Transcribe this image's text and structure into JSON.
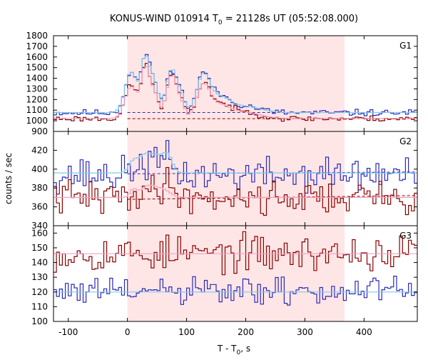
{
  "chart_data": {
    "type": "line",
    "title": "KONUS-WIND 010914 T",
    "title_sub": "0",
    "title_rest": " = 21128s UT (05:52:08.000)",
    "xlabel": "T - T",
    "xlabel_sub": "0",
    "xlabel_rest": ", s",
    "ylabel": "counts / sec",
    "xlim": [
      -125,
      490
    ],
    "x_ticks": [
      -100,
      0,
      100,
      200,
      300,
      400
    ],
    "x_tick_labels": [
      "-100",
      "0",
      "100",
      "200",
      "300",
      "400"
    ],
    "shaded_interval": [
      0,
      367
    ],
    "colors": {
      "shade": "#ffe6e6",
      "blue_hist": "#2a2ab8",
      "red_hist": "#8b0000",
      "fit_blue": "#7fc8f0",
      "fit_red": "#f0a0c0",
      "bg_blue": "#2a2ab8",
      "bg_red": "#8b0000"
    },
    "panels": [
      {
        "label": "G1",
        "ylim": [
          900,
          1800
        ],
        "y_ticks": [
          900,
          1000,
          1100,
          1200,
          1300,
          1400,
          1500,
          1600,
          1700,
          1800
        ],
        "y_tick_labels": [
          "900",
          "1000",
          "1100",
          "1200",
          "1300",
          "1400",
          "1500",
          "1600",
          "1700",
          "1800"
        ],
        "series": [
          {
            "style": "blue_hist",
            "base": 1075,
            "noise": 15,
            "seed": 11,
            "bumps": [
              [
                6,
                10,
                390
              ],
              [
                30,
                7,
                500
              ],
              [
                45,
                7,
                290
              ],
              [
                75,
                9,
                420
              ],
              [
                92,
                6,
                130
              ],
              [
                128,
                11,
                330
              ],
              [
                155,
                18,
                150
              ],
              [
                200,
                25,
                60
              ]
            ]
          },
          {
            "style": "red_hist",
            "base": 1020,
            "noise": 13,
            "seed": 23,
            "bumps": [
              [
                6,
                10,
                310
              ],
              [
                30,
                7,
                470
              ],
              [
                45,
                7,
                240
              ],
              [
                75,
                9,
                420
              ],
              [
                92,
                6,
                110
              ],
              [
                128,
                11,
                300
              ],
              [
                155,
                18,
                130
              ],
              [
                200,
                25,
                60
              ]
            ]
          },
          {
            "style": "fit_blue",
            "base": 1078,
            "noise": 0,
            "seed": 0,
            "bumps": [
              [
                6,
                10,
                380
              ],
              [
                30,
                7,
                490
              ],
              [
                45,
                7,
                280
              ],
              [
                75,
                9,
                410
              ],
              [
                92,
                6,
                120
              ],
              [
                128,
                11,
                320
              ],
              [
                155,
                18,
                140
              ],
              [
                200,
                25,
                55
              ]
            ]
          },
          {
            "style": "fit_red",
            "base": 1022,
            "noise": 0,
            "seed": 0,
            "bumps": [
              [
                6,
                10,
                300
              ],
              [
                30,
                7,
                460
              ],
              [
                45,
                7,
                230
              ],
              [
                75,
                9,
                410
              ],
              [
                92,
                6,
                100
              ],
              [
                128,
                11,
                290
              ],
              [
                155,
                18,
                120
              ],
              [
                200,
                25,
                55
              ]
            ]
          }
        ],
        "background_lines": [
          {
            "style": "bg_blue",
            "y_from": 1078,
            "y_to": 1078
          },
          {
            "style": "bg_red",
            "y_from": 1020,
            "y_to": 1020
          }
        ]
      },
      {
        "label": "G2",
        "ylim": [
          340,
          440
        ],
        "y_ticks": [
          340,
          360,
          380,
          400,
          420
        ],
        "y_tick_labels": [
          "340",
          "360",
          "380",
          "400",
          "420"
        ],
        "series": [
          {
            "style": "blue_hist",
            "base": 394,
            "noise": 9,
            "seed": 37,
            "bumps": [
              [
                15,
                9,
                8
              ],
              [
                35,
                10,
                12
              ],
              [
                55,
                9,
                10
              ],
              [
                70,
                8,
                13
              ]
            ]
          },
          {
            "style": "red_hist",
            "base": 370,
            "noise": 9,
            "seed": 41,
            "bumps": [
              [
                10,
                9,
                6
              ],
              [
                40,
                10,
                8
              ],
              [
                60,
                9,
                10
              ],
              [
                80,
                12,
                8
              ]
            ]
          },
          {
            "style": "fit_blue",
            "base": 396,
            "noise": 0,
            "seed": 0,
            "bumps": [
              [
                10,
                8,
                12
              ],
              [
                30,
                10,
                18
              ],
              [
                50,
                10,
                16
              ],
              [
                68,
                8,
                18
              ]
            ]
          },
          {
            "style": "fit_red",
            "base": 370,
            "noise": 0,
            "seed": 0,
            "bumps": [
              [
                10,
                6,
                8
              ],
              [
                35,
                12,
                12
              ],
              [
                60,
                12,
                8
              ]
            ]
          }
        ],
        "background_lines": [
          {
            "style": "bg_blue",
            "y_from": 395,
            "y_to": 397
          },
          {
            "style": "bg_red",
            "y_from": 368,
            "y_to": 372
          }
        ]
      },
      {
        "label": "G3",
        "ylim": [
          100,
          165
        ],
        "y_ticks": [
          100,
          110,
          120,
          130,
          140,
          150,
          160
        ],
        "y_tick_labels": [
          "100",
          "110",
          "120",
          "130",
          "140",
          "150",
          "160"
        ],
        "series": [
          {
            "style": "red_hist",
            "base": 146,
            "noise": 6,
            "seed": 53,
            "bumps": []
          },
          {
            "style": "blue_hist",
            "base": 120,
            "noise": 5,
            "seed": 61,
            "bumps": []
          },
          {
            "style": "fit_red",
            "base": 146,
            "noise": 0,
            "seed": 0,
            "bumps": []
          },
          {
            "style": "fit_blue",
            "base": 120,
            "noise": 0,
            "seed": 0,
            "bumps": []
          }
        ],
        "background_lines": []
      }
    ]
  }
}
